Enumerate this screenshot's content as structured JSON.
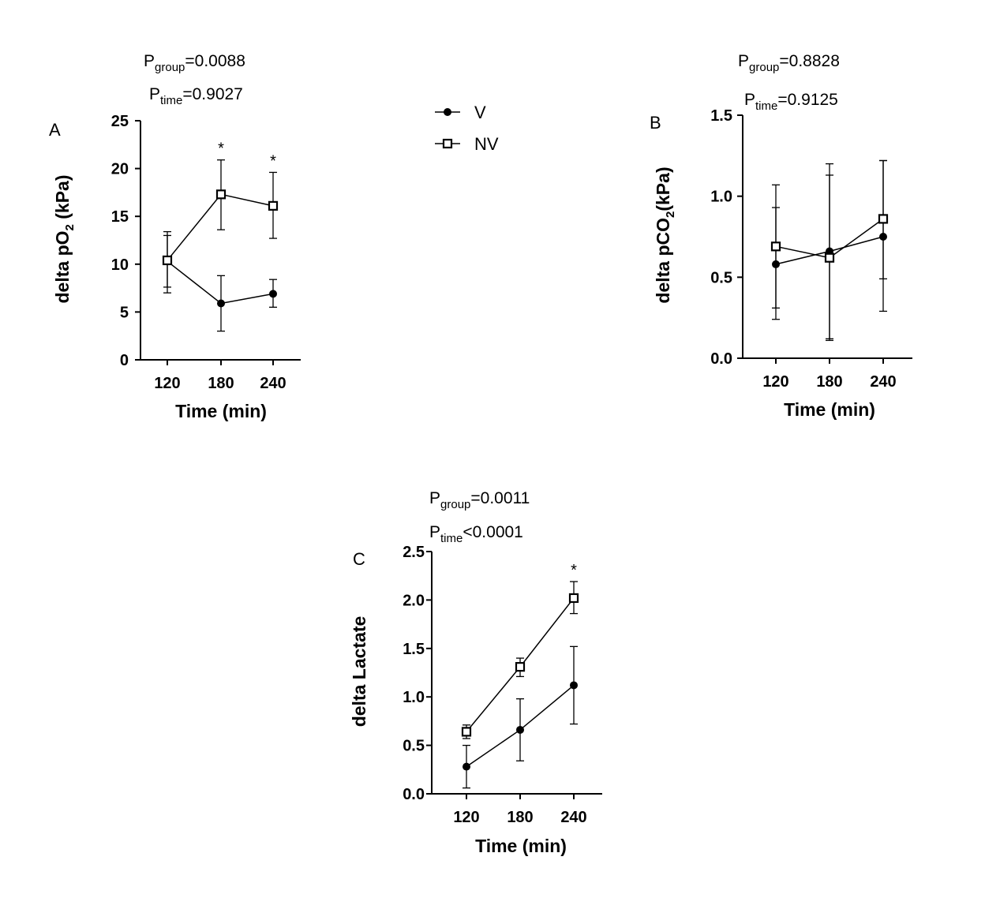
{
  "legend": {
    "items": [
      {
        "label": "V",
        "marker": "filled-circle"
      },
      {
        "label": "NV",
        "marker": "open-square"
      }
    ]
  },
  "chart_data": [
    {
      "panel": "A",
      "type": "line",
      "p_group": {
        "base": "P",
        "sub": "group",
        "rest": "=0.0088"
      },
      "p_time": {
        "base": "P",
        "sub": "time",
        "rest": "=0.9027"
      },
      "ylabel": {
        "base": "delta pO",
        "sub": "2",
        "rest": " (kPa)"
      },
      "xlabel": "Time (min)",
      "categories": [
        "120",
        "180",
        "240"
      ],
      "ylim": [
        0,
        25
      ],
      "yticks": [
        0,
        5,
        10,
        15,
        20,
        25
      ],
      "ytick_labels": [
        "0",
        "5",
        "10",
        "15",
        "20",
        "25"
      ],
      "series": [
        {
          "name": "V",
          "values": [
            10.3,
            5.9,
            6.9
          ],
          "err_low": [
            7.0,
            3.0,
            5.5
          ],
          "err_high": [
            13.0,
            8.8,
            8.4
          ]
        },
        {
          "name": "NV",
          "values": [
            10.4,
            17.3,
            16.1
          ],
          "err_low": [
            7.6,
            13.6,
            12.7
          ],
          "err_high": [
            13.4,
            20.9,
            19.6
          ]
        }
      ],
      "significance": [
        "",
        "*",
        "*"
      ]
    },
    {
      "panel": "B",
      "type": "line",
      "p_group": {
        "base": "P",
        "sub": "group",
        "rest": "=0.8828"
      },
      "p_time": {
        "base": "P",
        "sub": "time",
        "rest": "=0.9125"
      },
      "ylabel": {
        "base": "delta pCO",
        "sub": "2",
        "rest": "(kPa)"
      },
      "xlabel": "Time (min)",
      "categories": [
        "120",
        "180",
        "240"
      ],
      "ylim": [
        0,
        1.5
      ],
      "yticks": [
        0,
        0.5,
        1.0,
        1.5
      ],
      "ytick_labels": [
        "0.0",
        "0.5",
        "1.0",
        "1.5"
      ],
      "series": [
        {
          "name": "V",
          "values": [
            0.58,
            0.66,
            0.75
          ],
          "err_low": [
            0.24,
            0.12,
            0.29
          ],
          "err_high": [
            0.93,
            1.2,
            1.22
          ]
        },
        {
          "name": "NV",
          "values": [
            0.69,
            0.62,
            0.86
          ],
          "err_low": [
            0.31,
            0.11,
            0.49
          ],
          "err_high": [
            1.07,
            1.13,
            1.22
          ]
        }
      ],
      "significance": [
        "",
        "",
        ""
      ]
    },
    {
      "panel": "C",
      "type": "line",
      "p_group": {
        "base": "P",
        "sub": "group",
        "rest": "=0.0011"
      },
      "p_time": {
        "base": "P",
        "sub": "time",
        "rest": "<0.0001"
      },
      "ylabel": {
        "base": "delta Lactate",
        "sub": "",
        "rest": ""
      },
      "xlabel": "Time (min)",
      "categories": [
        "120",
        "180",
        "240"
      ],
      "ylim": [
        0,
        2.5
      ],
      "yticks": [
        0,
        0.5,
        1.0,
        1.5,
        2.0,
        2.5
      ],
      "ytick_labels": [
        "0.0",
        "0.5",
        "1.0",
        "1.5",
        "2.0",
        "2.5"
      ],
      "series": [
        {
          "name": "V",
          "values": [
            0.28,
            0.66,
            1.12
          ],
          "err_low": [
            0.06,
            0.34,
            0.72
          ],
          "err_high": [
            0.5,
            0.98,
            1.52
          ]
        },
        {
          "name": "NV",
          "values": [
            0.64,
            1.31,
            2.02
          ],
          "err_low": [
            0.57,
            1.21,
            1.86
          ],
          "err_high": [
            0.71,
            1.4,
            2.19
          ]
        }
      ],
      "significance": [
        "",
        "",
        "*"
      ]
    }
  ]
}
